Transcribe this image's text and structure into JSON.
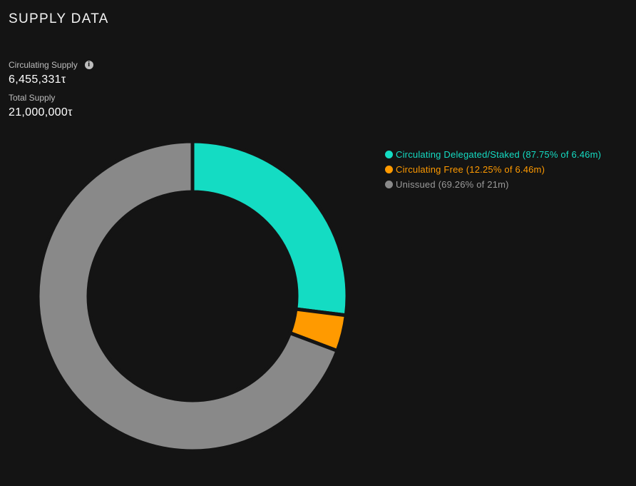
{
  "page": {
    "title": "SUPPLY DATA"
  },
  "stats": {
    "circulating_label": "Circulating Supply",
    "circulating_value": "6,455,331τ",
    "info_icon": "info-icon",
    "total_label": "Total Supply",
    "total_value": "21,000,000τ"
  },
  "chart_data": {
    "type": "pie",
    "style": "donut",
    "start_angle_deg": 0,
    "direction": "clockwise",
    "background": "#141414",
    "slices": [
      {
        "label": "Circulating Delegated/Staked (87.75% of 6.46m)",
        "value": 5664553,
        "color": "#14dcc3",
        "text_color": "#14dcc3"
      },
      {
        "label": "Circulating Free (12.25% of 6.46m)",
        "value": 790778,
        "color": "#ff9a00",
        "text_color": "#ff9a00"
      },
      {
        "label": "Unissued (69.26% of 21m)",
        "value": 14544669,
        "color": "#898989",
        "text_color": "#9a9a9a"
      }
    ],
    "legend_position": "top-right"
  }
}
